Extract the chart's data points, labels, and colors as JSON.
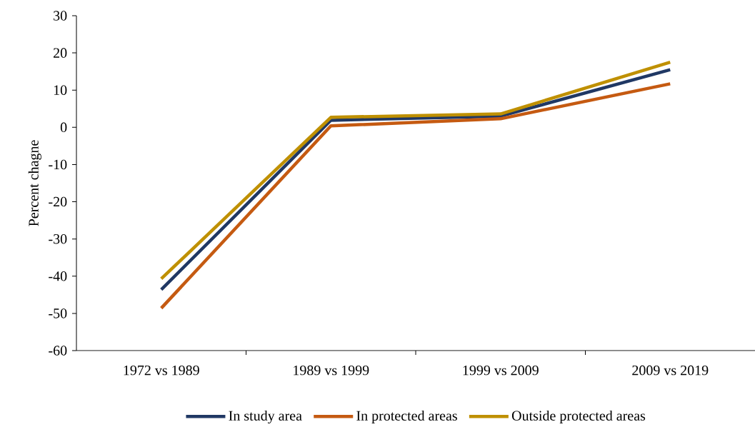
{
  "chart_data": {
    "type": "line",
    "ylabel": "Percent chagne",
    "categories": [
      "1972 vs 1989",
      "1989 vs 1999",
      "1999 vs 2009",
      "2009 vs 2019"
    ],
    "series": [
      {
        "name": "In study area",
        "color": "#203864",
        "values": [
          -43.6,
          1.9,
          3.0,
          15.5
        ]
      },
      {
        "name": "In protected areas",
        "color": "#c55a11",
        "values": [
          -48.6,
          0.4,
          2.3,
          11.7
        ]
      },
      {
        "name": "Outside protected areas",
        "color": "#bf9000",
        "values": [
          -40.7,
          2.7,
          3.6,
          17.5
        ]
      }
    ],
    "ylim": [
      -60,
      30
    ],
    "yticks": [
      -60,
      -50,
      -40,
      -30,
      -20,
      -10,
      0,
      10,
      20,
      30
    ],
    "legend": "bottom"
  }
}
